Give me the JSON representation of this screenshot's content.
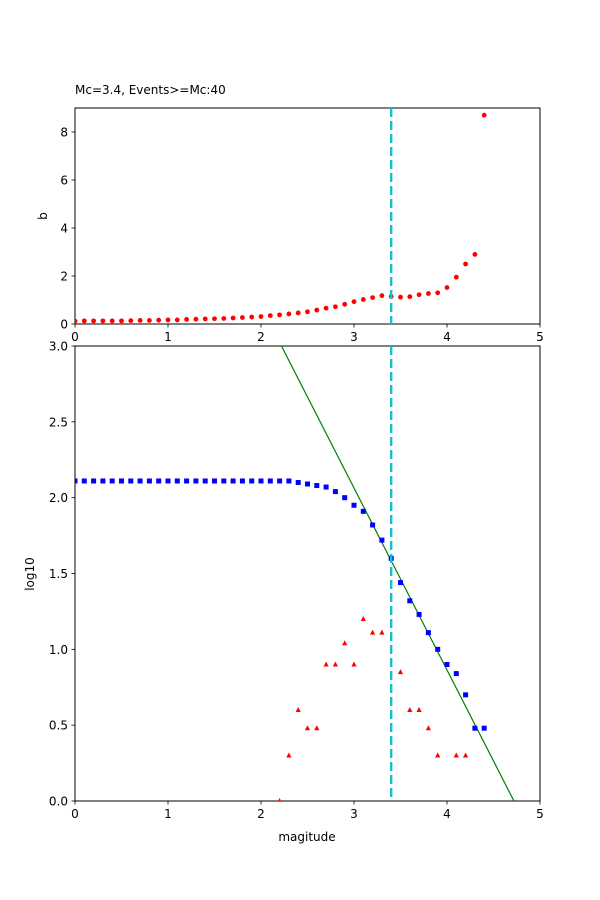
{
  "chart_data": [
    {
      "type": "scatter",
      "title": "Mc=3.4, Events>=Mc:40",
      "xlabel": "",
      "ylabel": "b",
      "xlim": [
        0,
        5
      ],
      "ylim": [
        0,
        9
      ],
      "xticks": [
        0,
        1,
        2,
        3,
        4,
        5
      ],
      "yticks": [
        0,
        2,
        4,
        6,
        8
      ],
      "mc_line_x": 3.4,
      "colors": {
        "points": "#ff0000",
        "mc_line": "#17becf"
      },
      "series": [
        {
          "marker": "circle",
          "x": [
            0.0,
            0.1,
            0.2,
            0.3,
            0.4,
            0.5,
            0.6,
            0.7,
            0.8,
            0.9,
            1.0,
            1.1,
            1.2,
            1.3,
            1.4,
            1.5,
            1.6,
            1.7,
            1.8,
            1.9,
            2.0,
            2.1,
            2.2,
            2.3,
            2.4,
            2.5,
            2.6,
            2.7,
            2.8,
            2.9,
            3.0,
            3.1,
            3.2,
            3.3,
            3.4,
            3.5,
            3.6,
            3.7,
            3.8,
            3.9,
            4.0,
            4.1,
            4.2,
            4.3,
            4.4
          ],
          "y": [
            0.12,
            0.13,
            0.13,
            0.13,
            0.13,
            0.13,
            0.14,
            0.15,
            0.15,
            0.16,
            0.17,
            0.17,
            0.19,
            0.2,
            0.21,
            0.22,
            0.23,
            0.25,
            0.27,
            0.29,
            0.31,
            0.35,
            0.38,
            0.42,
            0.46,
            0.51,
            0.58,
            0.66,
            0.72,
            0.82,
            0.93,
            1.02,
            1.1,
            1.18,
            1.15,
            1.12,
            1.14,
            1.22,
            1.27,
            1.3,
            1.52,
            1.95,
            2.5,
            2.9,
            8.7
          ]
        }
      ]
    },
    {
      "type": "scatter",
      "title": "",
      "xlabel": "magitude",
      "ylabel": "log10",
      "xlim": [
        0,
        5
      ],
      "ylim": [
        0,
        3
      ],
      "xticks": [
        0,
        1,
        2,
        3,
        4,
        5
      ],
      "yticks": [
        "0.0",
        "0.5",
        "1.0",
        "1.5",
        "2.0",
        "2.5",
        "3.0"
      ],
      "mc_line_x": 3.4,
      "fit_line": {
        "x": [
          2.22,
          4.72
        ],
        "y": [
          3.0,
          0.0
        ]
      },
      "colors": {
        "cumulative": "#0000ff",
        "noncumulative": "#ff0000",
        "fit": "#008000",
        "mc_line": "#17becf"
      },
      "series": [
        {
          "marker": "square",
          "x": [
            0.0,
            0.1,
            0.2,
            0.3,
            0.4,
            0.5,
            0.6,
            0.7,
            0.8,
            0.9,
            1.0,
            1.1,
            1.2,
            1.3,
            1.4,
            1.5,
            1.6,
            1.7,
            1.8,
            1.9,
            2.0,
            2.1,
            2.2,
            2.3,
            2.4,
            2.5,
            2.6,
            2.7,
            2.8,
            2.9,
            3.0,
            3.1,
            3.2,
            3.3,
            3.4,
            3.5,
            3.6,
            3.7,
            3.8,
            3.9,
            4.0,
            4.1,
            4.2,
            4.3,
            4.4
          ],
          "y": [
            2.11,
            2.11,
            2.11,
            2.11,
            2.11,
            2.11,
            2.11,
            2.11,
            2.11,
            2.11,
            2.11,
            2.11,
            2.11,
            2.11,
            2.11,
            2.11,
            2.11,
            2.11,
            2.11,
            2.11,
            2.11,
            2.11,
            2.11,
            2.11,
            2.1,
            2.09,
            2.08,
            2.07,
            2.04,
            2.0,
            1.95,
            1.91,
            1.82,
            1.72,
            1.6,
            1.44,
            1.32,
            1.23,
            1.11,
            1.0,
            0.9,
            0.84,
            0.7,
            0.48,
            0.48
          ]
        },
        {
          "marker": "triangle",
          "x": [
            2.2,
            2.3,
            2.4,
            2.5,
            2.6,
            2.7,
            2.8,
            2.9,
            3.0,
            3.1,
            3.2,
            3.3,
            3.5,
            3.6,
            3.7,
            3.8,
            3.9,
            4.1,
            4.2
          ],
          "y": [
            0.0,
            0.3,
            0.6,
            0.48,
            0.48,
            0.9,
            0.9,
            1.04,
            0.9,
            1.2,
            1.11,
            1.11,
            0.85,
            0.6,
            0.6,
            0.48,
            0.3,
            0.3,
            0.3
          ]
        }
      ]
    }
  ]
}
